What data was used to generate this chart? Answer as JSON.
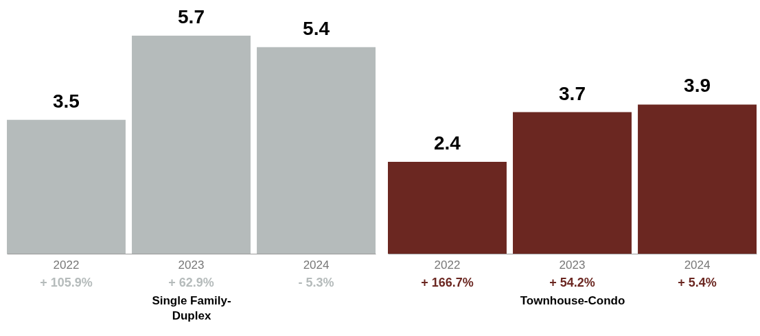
{
  "chart_data": [
    {
      "type": "bar",
      "categories": [
        "2022",
        "2023",
        "2024"
      ],
      "series": [
        {
          "color": "#b5bbbb",
          "values": [
            3.5,
            5.7,
            5.4
          ]
        }
      ],
      "data_labels": true,
      "xlabel": "Single Family-Duplex",
      "tick_labels": "x",
      "annotations": [
        "+ 105.9%",
        "+ 62.9%",
        "- 5.3%"
      ]
    },
    {
      "type": "bar",
      "categories": [
        "2022",
        "2023",
        "2024"
      ],
      "series": [
        {
          "color": "#6b2721",
          "values": [
            2.4,
            3.7,
            3.9
          ]
        }
      ],
      "data_labels": true,
      "xlabel": "Townhouse-Condo",
      "tick_labels": "x",
      "annotations": [
        "+ 166.7%",
        "+ 54.2%",
        "+ 5.4%"
      ]
    }
  ]
}
